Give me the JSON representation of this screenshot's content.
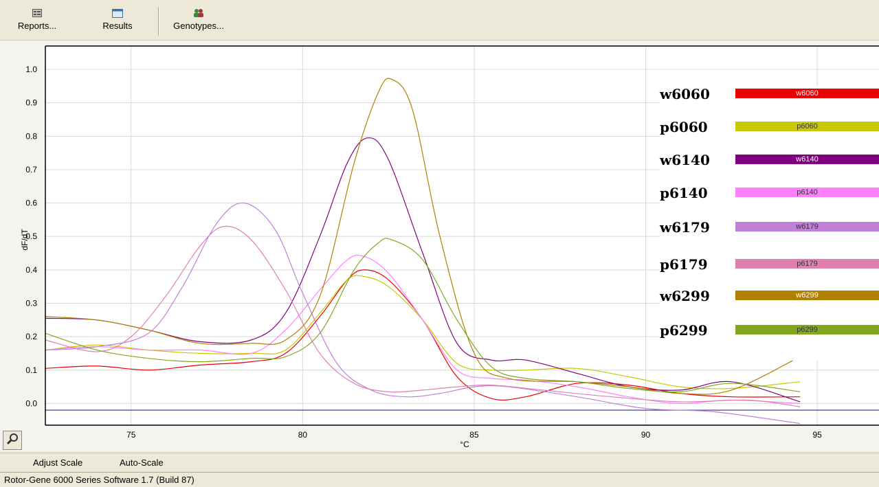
{
  "toolbar": {
    "reports_label": "Reports...",
    "results_label": "Results",
    "genotypes_label": "Genotypes..."
  },
  "chart_data": {
    "type": "line",
    "xlabel": "°C",
    "ylabel": "dF/dT",
    "xlim": [
      72.5,
      96.8
    ],
    "ylim": [
      -0.065,
      1.07
    ],
    "x_ticks": [
      75,
      80,
      85,
      90,
      95
    ],
    "y_ticks": [
      0.0,
      0.1,
      0.2,
      0.3,
      0.4,
      0.5,
      0.6,
      0.7,
      0.8,
      0.9,
      1.0
    ],
    "y_tick_labels": [
      "0.0",
      "0.1",
      "0.2",
      "0.3",
      "0.4",
      "0.5",
      "0.6",
      "0.7",
      "0.8",
      "0.9",
      "1.0"
    ],
    "x_tick_labels": [
      "75",
      "80",
      "85",
      "90",
      "95"
    ],
    "grid": true,
    "threshold": -0.02,
    "legend_position": "right",
    "series": [
      {
        "name": "w6060",
        "label": "w6060",
        "color": "#e80000",
        "text_color": "#ffffff",
        "x": [
          72.5,
          74,
          75.5,
          77,
          78.5,
          79.5,
          80.5,
          81.3,
          81.8,
          82.5,
          83.5,
          84.5,
          85.5,
          86.5,
          88,
          89.5,
          91,
          92.5,
          94.5
        ],
        "y": [
          0.105,
          0.112,
          0.1,
          0.115,
          0.125,
          0.15,
          0.26,
          0.37,
          0.4,
          0.37,
          0.25,
          0.08,
          0.015,
          0.02,
          0.06,
          0.055,
          0.03,
          0.02,
          0.02
        ]
      },
      {
        "name": "p6060",
        "label": "p6060",
        "color": "#c8c800",
        "text_color": "#333333",
        "x": [
          72.5,
          74,
          75.5,
          77,
          78.5,
          79.5,
          80.5,
          81.3,
          81.8,
          82.5,
          83.5,
          84.5,
          85.5,
          86.5,
          88,
          89.5,
          91,
          92.5,
          94.5
        ],
        "y": [
          0.16,
          0.175,
          0.16,
          0.15,
          0.15,
          0.16,
          0.27,
          0.37,
          0.38,
          0.35,
          0.25,
          0.12,
          0.1,
          0.1,
          0.105,
          0.08,
          0.05,
          0.045,
          0.065
        ]
      },
      {
        "name": "w6140",
        "label": "w6140",
        "color": "#800080",
        "text_color": "#ffffff",
        "x": [
          72.5,
          74,
          75.5,
          77,
          78.5,
          79.5,
          80.5,
          81.3,
          81.9,
          82.5,
          83.5,
          84.5,
          85.5,
          86.5,
          88,
          89.5,
          91,
          92.5,
          94.5
        ],
        "y": [
          0.255,
          0.25,
          0.22,
          0.185,
          0.19,
          0.27,
          0.5,
          0.72,
          0.795,
          0.73,
          0.45,
          0.18,
          0.13,
          0.13,
          0.09,
          0.05,
          0.04,
          0.065,
          0.005
        ]
      },
      {
        "name": "p6140",
        "label": "p6140",
        "color": "#ff80ff",
        "text_color": "#333333",
        "x": [
          72.5,
          74,
          75.5,
          77,
          78.5,
          79.5,
          80.5,
          81.3,
          81.8,
          82.5,
          83.5,
          84.5,
          85.5,
          86.5,
          88,
          89.5,
          91,
          92.5,
          94.5
        ],
        "y": [
          0.16,
          0.17,
          0.16,
          0.16,
          0.15,
          0.22,
          0.34,
          0.43,
          0.44,
          0.39,
          0.25,
          0.1,
          0.075,
          0.07,
          0.05,
          0.02,
          0.0,
          0.01,
          0.0
        ]
      },
      {
        "name": "w6179",
        "label": "w6179",
        "color": "#c080d8",
        "text_color": "#333333",
        "x": [
          72.5,
          74,
          75.5,
          76.5,
          77.5,
          78.3,
          79.2,
          80,
          81,
          82,
          83,
          84,
          85,
          86,
          88,
          90,
          92,
          94.5
        ],
        "y": [
          0.16,
          0.17,
          0.21,
          0.35,
          0.54,
          0.6,
          0.52,
          0.33,
          0.12,
          0.04,
          0.02,
          0.03,
          0.05,
          0.05,
          0.02,
          -0.015,
          -0.025,
          -0.06
        ]
      },
      {
        "name": "p6179",
        "label": "p6179",
        "color": "#e080b0",
        "text_color": "#333333",
        "x": [
          72.5,
          74,
          75,
          76,
          77,
          77.7,
          78.5,
          79.5,
          80.5,
          81.5,
          82.5,
          83.5,
          84.5,
          85.5,
          87,
          89,
          91,
          93,
          94.5
        ],
        "y": [
          0.19,
          0.155,
          0.2,
          0.32,
          0.47,
          0.53,
          0.49,
          0.34,
          0.15,
          0.06,
          0.035,
          0.04,
          0.05,
          0.055,
          0.04,
          0.02,
          0.005,
          0.01,
          -0.01
        ]
      },
      {
        "name": "w6299",
        "label": "w6299",
        "color": "#b08000",
        "text_color": "#ffffff",
        "x": [
          72.5,
          74,
          75.5,
          77,
          78.5,
          79.5,
          80.5,
          81.5,
          82.2,
          82.6,
          83.2,
          84,
          85,
          86,
          88,
          89.5,
          91,
          92.5,
          94.5
        ],
        "y": [
          0.26,
          0.25,
          0.22,
          0.18,
          0.18,
          0.19,
          0.32,
          0.72,
          0.93,
          0.97,
          0.88,
          0.5,
          0.15,
          0.075,
          0.065,
          0.05,
          0.03,
          0.04,
          0.14
        ]
      },
      {
        "name": "p6299",
        "label": "p6299",
        "color": "#80a820",
        "text_color": "#333333",
        "x": [
          72.5,
          74,
          75.5,
          77,
          78.5,
          79.5,
          80.5,
          81.5,
          82.2,
          82.6,
          83.5,
          84.5,
          85.5,
          86.5,
          88,
          89.5,
          91,
          92.5,
          94.5
        ],
        "y": [
          0.21,
          0.16,
          0.135,
          0.125,
          0.135,
          0.14,
          0.21,
          0.4,
          0.48,
          0.49,
          0.43,
          0.25,
          0.11,
          0.075,
          0.065,
          0.045,
          0.035,
          0.06,
          0.035
        ]
      }
    ]
  },
  "zoom_icon": "zoom-magnifier-icon",
  "scale": {
    "adjust_label": "Adjust Scale",
    "auto_label": "Auto-Scale"
  },
  "status": {
    "text": "Rotor-Gene 6000 Series Software 1.7 (Build 87)"
  },
  "colors": {
    "window_bg": "#ece9d8",
    "threshold_line": "#4040a0",
    "grid": "#d8d8d8"
  }
}
